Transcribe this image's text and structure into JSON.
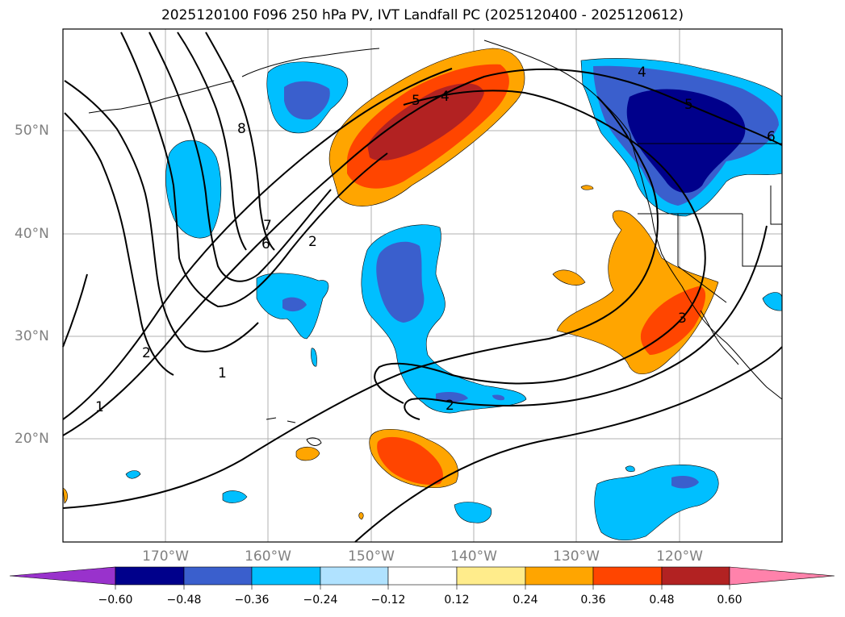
{
  "title": "2025120100 F096 250 hPa PV, IVT Landfall PC (2025120400 - 2025120612)",
  "latitude_labels": [
    "50°N",
    "40°N",
    "30°N",
    "20°N"
  ],
  "longitude_labels": [
    "170°W",
    "160°W",
    "150°W",
    "140°W",
    "130°W",
    "120°W"
  ],
  "contour_labels": [
    "8",
    "7",
    "6",
    "5",
    "4",
    "2",
    "2",
    "1",
    "2",
    "1",
    "3",
    "4",
    "5",
    "6"
  ],
  "colorbar": {
    "ticks": [
      "−0.60",
      "−0.48",
      "−0.36",
      "−0.24",
      "−0.12",
      "0.12",
      "0.24",
      "0.36",
      "0.48",
      "0.60"
    ],
    "colors": [
      "#9932cc",
      "#00008b",
      "#3a5fcd",
      "#00bfff",
      "#b0e2ff",
      "#ffffff",
      "#ffec8b",
      "#ffa500",
      "#ff4500",
      "#b22222",
      "#ff82ab"
    ]
  },
  "map_colors": {
    "ocean": "#ffffff",
    "contour": "#000000",
    "grid": "#b0b0b0",
    "axis_label": "#808080"
  }
}
